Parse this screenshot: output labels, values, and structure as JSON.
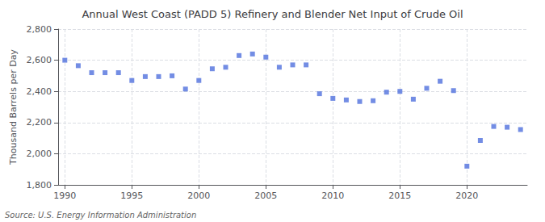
{
  "chart_data": {
    "type": "scatter",
    "title": "Annual West Coast (PADD 5) Refinery and Blender Net Input of Crude Oil",
    "ylabel": "Thousand Barrels per Day",
    "annotation": "Source: U.S. Energy Information Administration",
    "x": [
      1990,
      1991,
      1992,
      1993,
      1994,
      1995,
      1996,
      1997,
      1998,
      1999,
      2000,
      2001,
      2002,
      2003,
      2004,
      2005,
      2006,
      2007,
      2008,
      2009,
      2010,
      2011,
      2012,
      2013,
      2014,
      2015,
      2016,
      2017,
      2018,
      2019,
      2020,
      2021,
      2022,
      2023,
      2024
    ],
    "values": [
      2600,
      2565,
      2520,
      2520,
      2520,
      2470,
      2495,
      2495,
      2500,
      2415,
      2470,
      2545,
      2555,
      2630,
      2640,
      2620,
      2555,
      2570,
      2570,
      2385,
      2355,
      2345,
      2335,
      2340,
      2395,
      2400,
      2350,
      2420,
      2465,
      2405,
      1920,
      2085,
      2175,
      2170,
      2155
    ],
    "marker": "square",
    "xlim": [
      1989.5,
      2024.5
    ],
    "xticks": [
      1990,
      1995,
      2000,
      2005,
      2010,
      2015,
      2020
    ],
    "ylim": [
      1800,
      2800
    ],
    "yticks": [
      {
        "value": 1800,
        "label": "1,800"
      },
      {
        "value": 2000,
        "label": "2,000"
      },
      {
        "value": 2200,
        "label": "2,200"
      },
      {
        "value": 2400,
        "label": "2,400"
      },
      {
        "value": 2600,
        "label": "2,600"
      },
      {
        "value": 2800,
        "label": "2,800"
      }
    ],
    "grid": true
  }
}
